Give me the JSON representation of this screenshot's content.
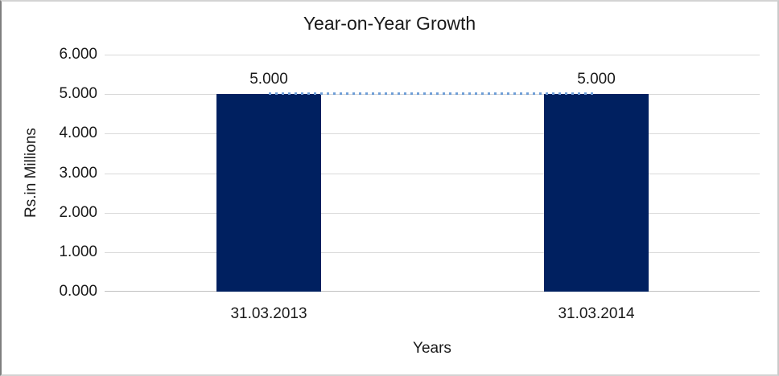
{
  "frame": {
    "background": "#ffffff",
    "border_color": "#d3d3d3",
    "left_edge_color": "#7f7f7f"
  },
  "chart_data": {
    "type": "bar",
    "title": "Year-on-Year Growth",
    "xlabel": "Years",
    "ylabel": "Rs.in Millions",
    "categories": [
      "31.03.2013",
      "31.03.2014"
    ],
    "series": [
      {
        "name": "growth-bars",
        "type": "bar",
        "values": [
          5.0,
          5.0
        ],
        "data_labels": [
          "5.000",
          "5.000"
        ],
        "color": "#002060"
      },
      {
        "name": "growth-trend-line",
        "type": "line",
        "values": [
          5.0,
          5.0
        ],
        "color": "#6f9ed6",
        "line_style": "dotted"
      }
    ],
    "ylim": [
      0,
      6
    ],
    "yticks": [
      0,
      1,
      2,
      3,
      4,
      5,
      6
    ],
    "ytick_labels": [
      "0.000",
      "1.000",
      "2.000",
      "3.000",
      "4.000",
      "5.000",
      "6.000"
    ],
    "grid": true,
    "gridline_color": "#d9d9d9",
    "baseline_color": "#bfbfbf",
    "legend_position": "none",
    "text_color": "#1a1a1a"
  }
}
